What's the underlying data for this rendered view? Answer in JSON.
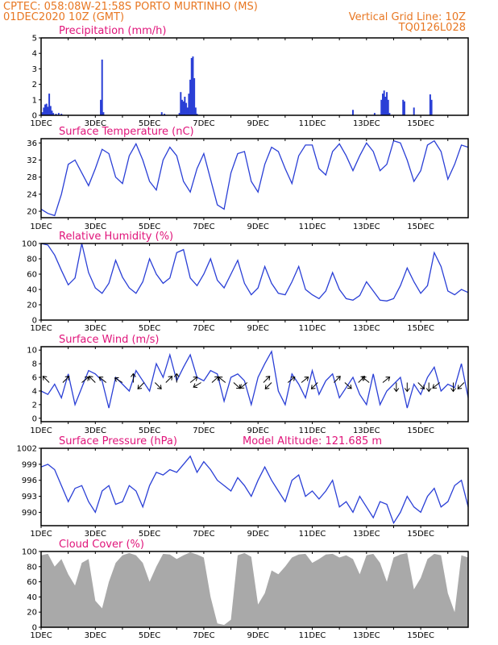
{
  "header": {
    "line1": "CPTEC:   058:08W-21:58S   PORTO MURTINHO (MS)",
    "line2_left": "01DEC2020 10Z (GMT)",
    "line2_right": "Vertical Grid Line: 10Z",
    "line3_right": "TQ0126L028"
  },
  "colors": {
    "header": "#e87722",
    "panel_title": "#e0147a",
    "series": "#2a3fd6",
    "cloud": "#a9a9a9"
  },
  "x_tick_labels": [
    "1DEC",
    "3DEC",
    "5DEC",
    "7DEC",
    "9DEC",
    "11DEC",
    "13DEC",
    "15DEC"
  ],
  "chart_data": [
    {
      "id": "precip",
      "type": "bar",
      "title": "Precipitation (mm/h)",
      "ylim": [
        0,
        5
      ],
      "yticks": [
        0,
        1,
        2,
        3,
        4,
        5
      ],
      "x_unit": "days since 01DEC2020 10Z",
      "points": [
        [
          0.05,
          0.2
        ],
        [
          0.1,
          0.5
        ],
        [
          0.15,
          0.7
        ],
        [
          0.2,
          0.75
        ],
        [
          0.25,
          0.55
        ],
        [
          0.3,
          1.4
        ],
        [
          0.35,
          0.6
        ],
        [
          0.4,
          0.3
        ],
        [
          0.45,
          0.15
        ],
        [
          0.55,
          0.1
        ],
        [
          0.65,
          0.15
        ],
        [
          0.75,
          0.1
        ],
        [
          2.2,
          1.0
        ],
        [
          2.25,
          3.6
        ],
        [
          2.3,
          0.2
        ],
        [
          4.45,
          0.2
        ],
        [
          4.55,
          0.1
        ],
        [
          5.1,
          0.15
        ],
        [
          5.15,
          1.5
        ],
        [
          5.2,
          1.0
        ],
        [
          5.25,
          0.9
        ],
        [
          5.3,
          1.2
        ],
        [
          5.35,
          0.8
        ],
        [
          5.4,
          0.5
        ],
        [
          5.45,
          1.4
        ],
        [
          5.5,
          2.3
        ],
        [
          5.55,
          3.7
        ],
        [
          5.6,
          3.8
        ],
        [
          5.65,
          2.4
        ],
        [
          5.7,
          0.5
        ],
        [
          5.75,
          0.1
        ],
        [
          11.5,
          0.35
        ],
        [
          12.3,
          0.15
        ],
        [
          12.55,
          1.0
        ],
        [
          12.6,
          1.4
        ],
        [
          12.65,
          1.6
        ],
        [
          12.7,
          1.2
        ],
        [
          12.75,
          1.5
        ],
        [
          12.8,
          1.0
        ],
        [
          12.85,
          0.15
        ],
        [
          13.35,
          1.0
        ],
        [
          13.4,
          0.9
        ],
        [
          13.75,
          0.5
        ],
        [
          14.35,
          1.35
        ],
        [
          14.4,
          1.0
        ]
      ]
    },
    {
      "id": "temp",
      "type": "line",
      "title": "Surface Temperature (nC)",
      "ylim": [
        18.5,
        37
      ],
      "yticks": [
        20,
        24,
        28,
        32,
        36
      ],
      "x": [
        0,
        0.25,
        0.5,
        0.75,
        1,
        1.25,
        1.5,
        1.75,
        2,
        2.25,
        2.5,
        2.75,
        3,
        3.25,
        3.5,
        3.75,
        4,
        4.25,
        4.5,
        4.75,
        5,
        5.25,
        5.5,
        5.75,
        6,
        6.25,
        6.5,
        6.75,
        7,
        7.25,
        7.5,
        7.75,
        8,
        8.25,
        8.5,
        8.75,
        9,
        9.25,
        9.5,
        9.75,
        10,
        10.25,
        10.5,
        10.75,
        11,
        11.25,
        11.5,
        11.75,
        12,
        12.25,
        12.5,
        12.75,
        13,
        13.25,
        13.5,
        13.75,
        14,
        14.25,
        14.5,
        14.75,
        15,
        15.25,
        15.5,
        15.75
      ],
      "values": [
        20.5,
        19.5,
        19,
        24,
        31,
        32,
        29,
        26,
        30,
        34.5,
        33.5,
        28,
        26.5,
        33,
        35.8,
        32,
        27,
        25,
        32,
        35,
        33,
        27,
        24.5,
        30,
        33.5,
        27.5,
        21.5,
        20.5,
        29,
        33.5,
        34,
        27,
        24.5,
        31,
        35,
        34,
        30,
        26.5,
        33,
        35.5,
        35.5,
        30,
        28.5,
        34,
        35.8,
        33,
        29.5,
        33,
        36,
        34,
        29.5,
        31,
        36.5,
        36,
        32,
        27,
        29.5,
        35.5,
        36.5,
        34,
        27.5,
        31,
        35.5,
        35
      ]
    },
    {
      "id": "rh",
      "type": "line",
      "title": "Relative Humidity (%)",
      "ylim": [
        0,
        100
      ],
      "yticks": [
        0,
        20,
        40,
        60,
        80,
        100
      ],
      "x": [
        0,
        0.25,
        0.5,
        0.75,
        1,
        1.25,
        1.5,
        1.75,
        2,
        2.25,
        2.5,
        2.75,
        3,
        3.25,
        3.5,
        3.75,
        4,
        4.25,
        4.5,
        4.75,
        5,
        5.25,
        5.5,
        5.75,
        6,
        6.25,
        6.5,
        6.75,
        7,
        7.25,
        7.5,
        7.75,
        8,
        8.25,
        8.5,
        8.75,
        9,
        9.25,
        9.5,
        9.75,
        10,
        10.25,
        10.5,
        10.75,
        11,
        11.25,
        11.5,
        11.75,
        12,
        12.25,
        12.5,
        12.75,
        13,
        13.25,
        13.5,
        13.75,
        14,
        14.25,
        14.5,
        14.75,
        15,
        15.25,
        15.5,
        15.75
      ],
      "values": [
        100,
        98,
        85,
        65,
        46,
        55,
        100,
        62,
        42,
        35,
        48,
        78,
        56,
        42,
        35,
        50,
        80,
        60,
        48,
        55,
        88,
        92,
        55,
        45,
        60,
        80,
        52,
        42,
        60,
        78,
        48,
        33,
        42,
        70,
        48,
        35,
        33,
        50,
        70,
        40,
        33,
        28,
        38,
        62,
        40,
        28,
        26,
        32,
        50,
        38,
        26,
        25,
        28,
        45,
        68,
        50,
        35,
        45,
        88,
        70,
        38,
        33,
        40,
        36
      ]
    },
    {
      "id": "wind",
      "type": "line",
      "title": "Surface Wind (m/s)",
      "ylim": [
        -0.5,
        10.5
      ],
      "yticks": [
        0,
        2,
        4,
        6,
        8,
        10
      ],
      "x": [
        0,
        0.25,
        0.5,
        0.75,
        1,
        1.25,
        1.5,
        1.75,
        2,
        2.25,
        2.5,
        2.75,
        3,
        3.25,
        3.5,
        3.75,
        4,
        4.25,
        4.5,
        4.75,
        5,
        5.25,
        5.5,
        5.75,
        6,
        6.25,
        6.5,
        6.75,
        7,
        7.25,
        7.5,
        7.75,
        8,
        8.25,
        8.5,
        8.75,
        9,
        9.25,
        9.5,
        9.75,
        10,
        10.25,
        10.5,
        10.75,
        11,
        11.25,
        11.5,
        11.75,
        12,
        12.25,
        12.5,
        12.75,
        13,
        13.25,
        13.5,
        13.75,
        14,
        14.25,
        14.5,
        14.75,
        15,
        15.25,
        15.5,
        15.75
      ],
      "values": [
        4,
        3.5,
        5,
        3,
        6.5,
        2,
        4.5,
        7,
        6.5,
        5.5,
        1.5,
        6,
        5,
        4,
        7,
        5.5,
        4,
        8,
        6,
        9.3,
        5.5,
        7.5,
        9.3,
        6,
        5.5,
        7,
        6.5,
        2.5,
        6,
        6.5,
        5.5,
        2,
        6,
        8,
        9.8,
        4,
        2,
        6.5,
        5,
        3,
        7,
        3.5,
        5.5,
        6.5,
        3,
        4.5,
        6,
        3.5,
        2,
        6.5,
        2,
        4,
        5,
        6,
        1.5,
        5,
        3.5,
        6,
        7.5,
        4,
        5,
        4.5,
        8,
        3
      ],
      "arrows": [
        [
          0.3,
          -1,
          1
        ],
        [
          0.8,
          1,
          1
        ],
        [
          1.5,
          1,
          0.8
        ],
        [
          2.0,
          -1,
          1
        ],
        [
          2.4,
          -1,
          0.8
        ],
        [
          3.0,
          -1,
          0.6
        ],
        [
          3.4,
          0,
          1
        ],
        [
          3.8,
          -1,
          -1
        ],
        [
          4.2,
          1,
          -1
        ],
        [
          4.6,
          1,
          1
        ],
        [
          5.0,
          0,
          1
        ],
        [
          5.5,
          1,
          0.8
        ],
        [
          5.9,
          -1,
          -0.6
        ],
        [
          6.3,
          1,
          0.9
        ],
        [
          6.8,
          -1,
          0.8
        ],
        [
          7.1,
          1,
          -0.9
        ],
        [
          7.6,
          -1,
          -0.8
        ],
        [
          8.2,
          1,
          1
        ],
        [
          8.5,
          -1,
          -1
        ],
        [
          9.1,
          1,
          0.8
        ],
        [
          9.6,
          1,
          0.8
        ],
        [
          10.2,
          -1,
          -1
        ],
        [
          10.8,
          1,
          1
        ],
        [
          11.2,
          1,
          -0.9
        ],
        [
          11.7,
          1,
          1
        ],
        [
          12.1,
          -1,
          0.8
        ],
        [
          12.6,
          1,
          0.8
        ],
        [
          13.1,
          0,
          -1
        ],
        [
          13.5,
          0,
          -1
        ],
        [
          13.9,
          1,
          -1
        ],
        [
          14.3,
          0,
          -1
        ],
        [
          14.7,
          -1,
          -0.8
        ],
        [
          15.2,
          0,
          -1
        ],
        [
          15.6,
          -1,
          -1
        ]
      ]
    },
    {
      "id": "pres",
      "type": "line",
      "title": "Surface Pressure (hPa)",
      "annotation": "Model Altitude: 121.685 m",
      "ylim": [
        987.5,
        1002
      ],
      "yticks": [
        990,
        993,
        996,
        999,
        1002
      ],
      "x": [
        0,
        0.25,
        0.5,
        0.75,
        1,
        1.25,
        1.5,
        1.75,
        2,
        2.25,
        2.5,
        2.75,
        3,
        3.25,
        3.5,
        3.75,
        4,
        4.25,
        4.5,
        4.75,
        5,
        5.25,
        5.5,
        5.75,
        6,
        6.25,
        6.5,
        6.75,
        7,
        7.25,
        7.5,
        7.75,
        8,
        8.25,
        8.5,
        8.75,
        9,
        9.25,
        9.5,
        9.75,
        10,
        10.25,
        10.5,
        10.75,
        11,
        11.25,
        11.5,
        11.75,
        12,
        12.25,
        12.5,
        12.75,
        13,
        13.25,
        13.5,
        13.75,
        14,
        14.25,
        14.5,
        14.75,
        15,
        15.25,
        15.5,
        15.75
      ],
      "values": [
        998.5,
        999,
        998,
        995,
        992,
        994.5,
        995,
        992,
        990,
        994,
        995,
        991.5,
        992,
        995,
        994,
        991,
        995,
        997.5,
        997,
        998,
        997.5,
        999,
        1000.5,
        997.5,
        999.5,
        998,
        996,
        995,
        994,
        996.5,
        995,
        993,
        996,
        998.5,
        996,
        994,
        992,
        996,
        997,
        993,
        994,
        992.5,
        994,
        996,
        991,
        992,
        990,
        993,
        991,
        989,
        992,
        991.5,
        988,
        990,
        993,
        991,
        990,
        993,
        994.5,
        991,
        992,
        995,
        996,
        991
      ]
    },
    {
      "id": "cloud",
      "type": "area",
      "title": "Cloud Cover (%)",
      "ylim": [
        0,
        100
      ],
      "yticks": [
        0,
        20,
        40,
        60,
        80,
        100
      ],
      "x": [
        0,
        0.25,
        0.5,
        0.75,
        1,
        1.25,
        1.5,
        1.75,
        2,
        2.25,
        2.5,
        2.75,
        3,
        3.25,
        3.5,
        3.75,
        4,
        4.25,
        4.5,
        4.75,
        5,
        5.25,
        5.5,
        5.75,
        6,
        6.25,
        6.5,
        6.75,
        7,
        7.25,
        7.5,
        7.75,
        8,
        8.25,
        8.5,
        8.75,
        9,
        9.25,
        9.5,
        9.75,
        10,
        10.25,
        10.5,
        10.75,
        11,
        11.25,
        11.5,
        11.75,
        12,
        12.25,
        12.5,
        12.75,
        13,
        13.25,
        13.5,
        13.75,
        14,
        14.25,
        14.5,
        14.75,
        15,
        15.25,
        15.5,
        15.75
      ],
      "values": [
        95,
        97,
        80,
        90,
        70,
        55,
        85,
        90,
        35,
        25,
        60,
        85,
        95,
        98,
        95,
        85,
        60,
        80,
        97,
        96,
        90,
        95,
        99,
        96,
        92,
        40,
        5,
        3,
        10,
        95,
        98,
        93,
        30,
        45,
        75,
        70,
        80,
        92,
        96,
        97,
        85,
        90,
        96,
        97,
        92,
        95,
        90,
        70,
        95,
        97,
        85,
        60,
        92,
        96,
        98,
        50,
        65,
        90,
        97,
        95,
        45,
        20,
        95,
        92
      ]
    }
  ]
}
